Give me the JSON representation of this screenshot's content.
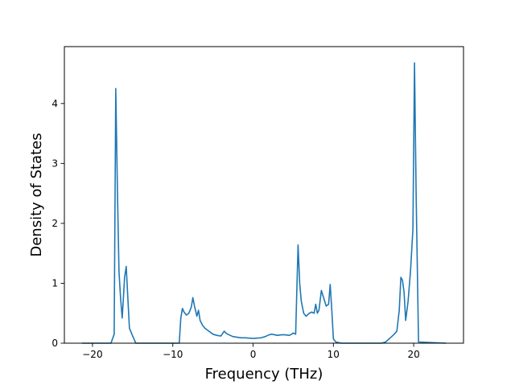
{
  "chart_data": {
    "type": "line",
    "title": "",
    "xlabel": "Frequency (THz)",
    "ylabel": "Density of States",
    "xlim": [
      -23.5,
      26.2
    ],
    "ylim": [
      0,
      4.95
    ],
    "x_ticks": [
      -20,
      -10,
      0,
      10,
      20
    ],
    "y_ticks": [
      0,
      1,
      2,
      3,
      4
    ],
    "x_tick_labels": [
      "−20",
      "−10",
      "0",
      "10",
      "20"
    ],
    "y_tick_labels": [
      "0",
      "1",
      "2",
      "3",
      "4"
    ],
    "grid": false,
    "legend": "none",
    "series": [
      {
        "color": "#1f77b4",
        "x": [
          -21.3,
          -17.7,
          -17.3,
          -17.1,
          -16.9,
          -16.7,
          -16.5,
          -16.3,
          -16.0,
          -15.8,
          -15.4,
          -15.0,
          -14.6,
          -9.2,
          -9.0,
          -8.8,
          -8.6,
          -8.3,
          -8.0,
          -7.7,
          -7.5,
          -7.3,
          -7.0,
          -6.8,
          -6.6,
          -6.3,
          -6.0,
          -5.5,
          -5.0,
          -4.5,
          -4.0,
          -3.6,
          -3.3,
          -3.0,
          -2.5,
          -2.0,
          -1.5,
          -1.0,
          0.0,
          1.0,
          1.5,
          2.0,
          2.3,
          2.7,
          3.0,
          3.5,
          4.0,
          4.5,
          4.8,
          5.0,
          5.3,
          5.6,
          5.8,
          6.0,
          6.3,
          6.6,
          7.0,
          7.3,
          7.6,
          7.8,
          8.0,
          8.2,
          8.5,
          8.8,
          9.1,
          9.4,
          9.6,
          9.8,
          10.0,
          10.3,
          11.0,
          16.0,
          16.5,
          17.0,
          17.5,
          17.9,
          18.2,
          18.4,
          18.6,
          18.8,
          19.0,
          19.3,
          19.6,
          19.9,
          20.1,
          20.3,
          20.6,
          24.0
        ],
        "y": [
          0,
          0,
          0.15,
          4.25,
          2.6,
          1.2,
          0.75,
          0.42,
          1.1,
          1.28,
          0.25,
          0.12,
          0,
          0,
          0.42,
          0.58,
          0.52,
          0.47,
          0.5,
          0.6,
          0.76,
          0.62,
          0.45,
          0.55,
          0.38,
          0.3,
          0.25,
          0.2,
          0.15,
          0.13,
          0.12,
          0.2,
          0.16,
          0.14,
          0.11,
          0.1,
          0.09,
          0.09,
          0.08,
          0.09,
          0.11,
          0.14,
          0.15,
          0.14,
          0.13,
          0.14,
          0.14,
          0.13,
          0.15,
          0.17,
          0.15,
          1.64,
          1.0,
          0.7,
          0.5,
          0.45,
          0.5,
          0.52,
          0.5,
          0.65,
          0.5,
          0.55,
          0.88,
          0.75,
          0.62,
          0.65,
          0.98,
          0.55,
          0.07,
          0.02,
          0,
          0,
          0.02,
          0.08,
          0.14,
          0.2,
          0.55,
          1.1,
          1.05,
          0.85,
          0.38,
          0.7,
          1.2,
          1.9,
          4.68,
          2.5,
          0.02,
          0
        ]
      }
    ]
  }
}
